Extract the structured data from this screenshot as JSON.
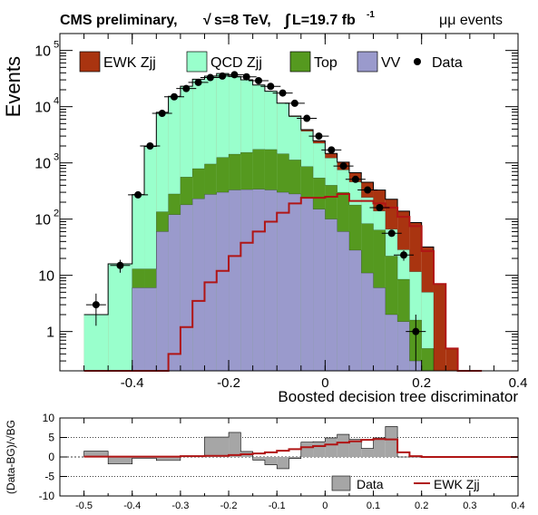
{
  "header": {
    "experiment": "CMS preliminary,",
    "sqrt_s": "s=8 TeV,",
    "lumi": "L=19.7 fb",
    "lumi_exp": "-1",
    "channel": "μμ events"
  },
  "colors": {
    "ewk": "#a93410",
    "qcd": "#99ffcc",
    "top": "#55991f",
    "vv": "#9a9acc",
    "data": "#000000",
    "ratio_fill": "#a6a6a6",
    "ratio_line": "#b01515"
  },
  "chart_data": [
    {
      "type": "bar",
      "subtype": "stacked-histogram",
      "ylabel": "Events",
      "xlabel": "Boosted decision tree discriminator",
      "log_y": true,
      "xlim": [
        -0.55,
        0.4
      ],
      "ylim": [
        0.2,
        200000
      ],
      "x_ticks": [
        "-0.4",
        "-0.2",
        "0",
        "0.2",
        "0.4"
      ],
      "y_ticks": [
        "1",
        "10",
        "10^2",
        "10^3",
        "10^4",
        "10^5"
      ],
      "legend": [
        {
          "label": "EWK Zjj",
          "kind": "box",
          "color_key": "ewk"
        },
        {
          "label": "QCD Zjj",
          "kind": "box",
          "color_key": "qcd"
        },
        {
          "label": "Top",
          "kind": "box",
          "color_key": "top"
        },
        {
          "label": "VV",
          "kind": "box",
          "color_key": "vv"
        },
        {
          "label": "Data",
          "kind": "marker"
        }
      ],
      "bin_edges": [
        -0.5,
        -0.45,
        -0.4,
        -0.375,
        -0.35,
        -0.325,
        -0.3,
        -0.275,
        -0.25,
        -0.225,
        -0.2,
        -0.175,
        -0.15,
        -0.125,
        -0.1,
        -0.075,
        -0.05,
        -0.025,
        0,
        0.025,
        0.05,
        0.075,
        0.1,
        0.125,
        0.15,
        0.175,
        0.2,
        0.225,
        0.25,
        0.275,
        0.3,
        0.325
      ],
      "series": [
        {
          "name": "VV",
          "values": [
            0,
            0,
            6,
            6,
            60,
            120,
            180,
            230,
            275,
            300,
            330,
            335,
            340,
            330,
            300,
            280,
            240,
            150,
            100,
            60,
            28,
            11,
            6,
            2,
            1.5,
            0.3,
            0,
            0,
            0,
            0,
            0
          ]
        },
        {
          "name": "Top",
          "values": [
            0,
            0,
            7,
            7,
            75,
            160,
            380,
            560,
            680,
            950,
            1100,
            1200,
            1400,
            1400,
            1150,
            850,
            620,
            390,
            300,
            240,
            150,
            72,
            58,
            20,
            7,
            1.3,
            0.5,
            0,
            0,
            0,
            0
          ]
        },
        {
          "name": "QCD Zjj",
          "values": [
            2,
            16,
            260,
            1950,
            7800,
            15000,
            22500,
            30000,
            34000,
            37500,
            33000,
            28500,
            22500,
            17000,
            10000,
            5500,
            2800,
            1700,
            820,
            450,
            280,
            160,
            75,
            44,
            20,
            10,
            4.5,
            0,
            0,
            0,
            0
          ]
        },
        {
          "name": "EWK Zjj",
          "values": [
            0,
            0,
            0,
            0,
            0,
            0.4,
            1.2,
            3.5,
            7.5,
            12,
            22,
            38,
            60,
            90,
            130,
            190,
            240,
            240,
            250,
            280,
            210,
            210,
            190,
            160,
            110,
            75,
            27,
            7,
            0.5,
            0,
            0
          ]
        }
      ],
      "data_points": [
        {
          "x": -0.475,
          "y": 3
        },
        {
          "x": -0.425,
          "y": 15
        },
        {
          "x": -0.388,
          "y": 270
        },
        {
          "x": -0.363,
          "y": 2000
        },
        {
          "x": -0.338,
          "y": 7600
        },
        {
          "x": -0.313,
          "y": 15000
        },
        {
          "x": -0.288,
          "y": 21000
        },
        {
          "x": -0.263,
          "y": 27000
        },
        {
          "x": -0.238,
          "y": 33000
        },
        {
          "x": -0.213,
          "y": 35000
        },
        {
          "x": -0.188,
          "y": 37000
        },
        {
          "x": -0.163,
          "y": 34000
        },
        {
          "x": -0.138,
          "y": 29000
        },
        {
          "x": -0.113,
          "y": 23000
        },
        {
          "x": -0.088,
          "y": 17500
        },
        {
          "x": -0.063,
          "y": 11500
        },
        {
          "x": -0.038,
          "y": 6200
        },
        {
          "x": -0.013,
          "y": 3000
        },
        {
          "x": 0.013,
          "y": 1700
        },
        {
          "x": 0.038,
          "y": 880
        },
        {
          "x": 0.063,
          "y": 510
        },
        {
          "x": 0.088,
          "y": 330
        },
        {
          "x": 0.113,
          "y": 160
        },
        {
          "x": 0.138,
          "y": 56
        },
        {
          "x": 0.163,
          "y": 23
        },
        {
          "x": 0.188,
          "y": 1
        }
      ]
    },
    {
      "type": "bar",
      "subtype": "ratio-histogram",
      "ylabel": "(Data-BG)/√BG",
      "xlim": [
        -0.55,
        0.4
      ],
      "ylim": [
        -10,
        10
      ],
      "y_ticks": [
        "10",
        "5",
        "0",
        "-5",
        "-10"
      ],
      "x_ticks": [
        "-0.5",
        "-0.4",
        "-0.3",
        "-0.2",
        "-0.1",
        "0",
        "0.1",
        "0.2",
        "0.3",
        "0.4"
      ],
      "legend": [
        {
          "label": "Data",
          "kind": "box",
          "color_key": "ratio_fill"
        },
        {
          "label": "EWK Zjj",
          "kind": "line",
          "color_key": "ratio_line"
        }
      ],
      "bin_edges": [
        -0.5,
        -0.45,
        -0.4,
        -0.35,
        -0.3,
        -0.25,
        -0.2,
        -0.175,
        -0.15,
        -0.125,
        -0.1,
        -0.075,
        -0.05,
        -0.025,
        0,
        0.025,
        0.05,
        0.075,
        0.1,
        0.125,
        0.15,
        0.175,
        0.2,
        0.225,
        0.25,
        0.275,
        0.3,
        0.325
      ],
      "data_values": [
        1.5,
        -1.8,
        -0.3,
        -0.9,
        0.3,
        5.1,
        6.3,
        1.4,
        -0.8,
        -2.0,
        -3.0,
        -0.4,
        3.8,
        3.9,
        4.9,
        5.8,
        4.5,
        2.2,
        4.9,
        7.8,
        0,
        0,
        0,
        0,
        0,
        0,
        0
      ],
      "ewk_values": [
        0.1,
        0.1,
        0.1,
        0.1,
        0.2,
        0.3,
        0.5,
        0.7,
        0.9,
        1.2,
        1.6,
        2.0,
        2.5,
        2.8,
        3.2,
        3.7,
        4.0,
        4.4,
        4.6,
        4.5,
        1.2,
        0.2,
        0,
        0,
        0,
        0,
        0
      ]
    }
  ]
}
